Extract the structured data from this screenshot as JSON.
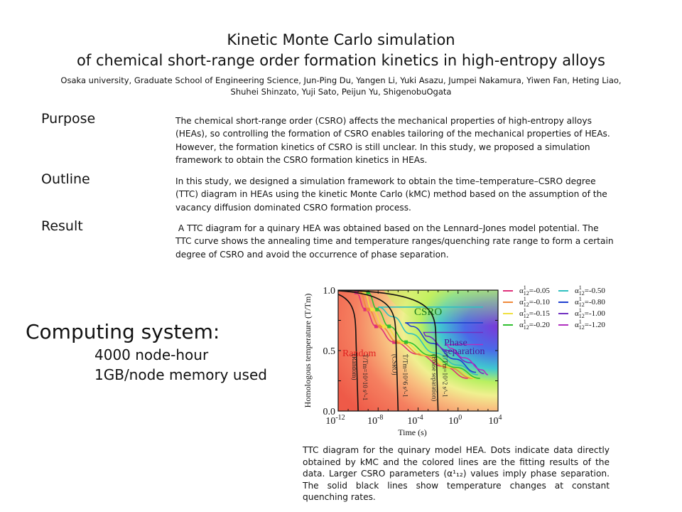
{
  "header": {
    "title_line1": "Kinetic Monte Carlo simulation",
    "title_line2": "of chemical short-range order formation kinetics in high-entropy alloys",
    "authors_line1": "Osaka university, Graduate School of Engineering Science,  Jun-Ping Du, Yangen Li, Yuki Asazu, Jumpei Nakamura, Yiwen Fan, Heting Liao,",
    "authors_line2": "Shuhei Shinzato, Yuji Sato, Peijun Yu, ShigenobuOgata"
  },
  "sections": {
    "purpose": {
      "heading": "Purpose",
      "lines": [
        "The chemical short-range order (CSRO) affects the mechanical properties of high-entropy alloys",
        "(HEAs), so controlling the formation of CSRO enables tailoring of the mechanical properties of HEAs.",
        "However, the formation kinetics of CSRO is still unclear. In this study, we proposed a simulation",
        "framework to obtain the CSRO formation kinetics in HEAs."
      ]
    },
    "outline": {
      "heading": "Outline",
      "lines": [
        "In this study, we designed a simulation framework to obtain the time–temperature–CSRO degree",
        "(TTC) diagram in HEAs using the kinetic Monte Carlo (kMC) method based on the assumption of the",
        "vacancy diffusion dominated CSRO formation process."
      ]
    },
    "result": {
      "heading": "Result",
      "lines": [
        " A TTC diagram for a quinary HEA was obtained based on the Lennard–Jones model potential. The",
        "TTC curve shows the annealing time and temperature ranges/quenching rate range to form a certain",
        "degree of CSRO and avoid the occurrence of phase separation."
      ]
    }
  },
  "computing": {
    "title": "Computing system:",
    "node_hours": "4000 node-hour",
    "memory": "1GB/node memory used"
  },
  "caption": {
    "text": "TTC diagram for the quinary model HEA. Dots indicate data directly obtained by kMC and the colored lines are the fitting results of the data. Larger CSRO parameters (α¹₁₂) values imply phase separation. The solid black lines show temperature changes at constant quenching rates."
  },
  "chart_data": {
    "type": "line",
    "title": "TTC diagram",
    "xlabel": "Time (s)",
    "ylabel": "Homologous temperature (T/Tm)",
    "x_scale": "log",
    "xlim_log10": [
      -12,
      4
    ],
    "ylim": [
      0.0,
      1.0
    ],
    "x_tick_labels": [
      "10^-12",
      "10^-8",
      "10^-4",
      "10^0",
      "10^4"
    ],
    "y_tick_labels": [
      "0.0",
      "0.5",
      "1.0"
    ],
    "region_labels": [
      {
        "text": "Random",
        "color": "#e02020"
      },
      {
        "text": "CSRO",
        "color": "#1a7a1a"
      },
      {
        "text": "Phase",
        "color": "#4a1a9a"
      },
      {
        "text": "separation",
        "color": "#4a1a9a"
      }
    ],
    "legend_position": "right",
    "series": [
      {
        "name": "α¹₁₂=-0.05",
        "sym": "α",
        "sup": "1",
        "sub": "12",
        "value": "=-0.05",
        "color": "#e0307a",
        "x_log10": [
          -10.2,
          -9.3,
          -8.2,
          -6.4,
          -4.0,
          -1.5,
          1.0
        ],
        "y": [
          0.98,
          0.84,
          0.7,
          0.57,
          0.47,
          0.37,
          0.27
        ]
      },
      {
        "name": "α¹₁₂=-0.10",
        "sym": "α",
        "sup": "1",
        "sub": "12",
        "value": "=-0.10",
        "color": "#f08a3a",
        "x_log10": [
          -9.8,
          -9.0,
          -7.8,
          -6.0,
          -3.5,
          -1.0,
          1.5
        ],
        "y": [
          0.98,
          0.84,
          0.7,
          0.57,
          0.46,
          0.36,
          0.27
        ]
      },
      {
        "name": "α¹₁₂=-0.15",
        "sym": "α",
        "sup": "1",
        "sub": "12",
        "value": "=-0.15",
        "color": "#f0e040",
        "x_log10": [
          -9.4,
          -8.6,
          -7.4,
          -5.6,
          -3.1,
          -0.6,
          1.8
        ],
        "y": [
          0.98,
          0.84,
          0.7,
          0.57,
          0.46,
          0.36,
          0.27
        ]
      },
      {
        "name": "α¹₁₂=-0.20",
        "sym": "α",
        "sup": "1",
        "sub": "12",
        "value": "=-0.20",
        "color": "#30c030",
        "x_log10": [
          -9.0,
          -8.1,
          -6.9,
          -5.2,
          -2.7,
          -0.2,
          2.2
        ],
        "y": [
          0.98,
          0.84,
          0.7,
          0.57,
          0.46,
          0.36,
          0.27
        ]
      },
      {
        "name": "α¹₁₂=-0.50",
        "sym": "α",
        "sup": "1",
        "sub": "12",
        "value": "=-0.50",
        "color": "#30c0c0",
        "x_log10": [
          -8.0,
          -6.5,
          -4.8,
          -2.3,
          0.0,
          2.0
        ],
        "y": [
          0.86,
          0.78,
          0.64,
          0.48,
          0.38,
          0.3
        ]
      },
      {
        "name": "α¹₁₂=-0.80",
        "sym": "α",
        "sup": "1",
        "sub": "12",
        "value": "=-0.80",
        "color": "#2040d0",
        "x_log10": [
          -5.3,
          -4.6,
          -2.6,
          -0.3,
          1.8
        ],
        "y": [
          0.73,
          0.7,
          0.56,
          0.43,
          0.32
        ]
      },
      {
        "name": "α¹₁₂=-1.00",
        "sym": "α",
        "sup": "1",
        "sub": "12",
        "value": "=-1.00",
        "color": "#7030c0",
        "x_log10": [
          -3.5,
          -3.2,
          -1.0,
          1.2,
          2.6
        ],
        "y": [
          0.65,
          0.62,
          0.5,
          0.4,
          0.31
        ]
      },
      {
        "name": "α¹₁₂=-1.20",
        "sym": "α",
        "sup": "1",
        "sub": "12",
        "value": "=-1.20",
        "color": "#b030c0",
        "x_log10": [
          -1.2,
          -0.8,
          0.6,
          2.4,
          3.0
        ],
        "y": [
          0.55,
          0.52,
          0.44,
          0.34,
          0.3
        ]
      }
    ],
    "quench_lines": [
      {
        "label": "(Random)",
        "rate": "Ṫ/Tm=10^10 s^-1",
        "x_log10_bottom": -10.0
      },
      {
        "label": "(CSRO)",
        "rate": "Ṫ/Tm=10^6 s^-1",
        "x_log10_bottom": -6.0
      },
      {
        "label": "(Phase separation)",
        "rate": "Ṫ/Tm=10^2 s^-1",
        "x_log10_bottom": -2.0
      }
    ]
  }
}
